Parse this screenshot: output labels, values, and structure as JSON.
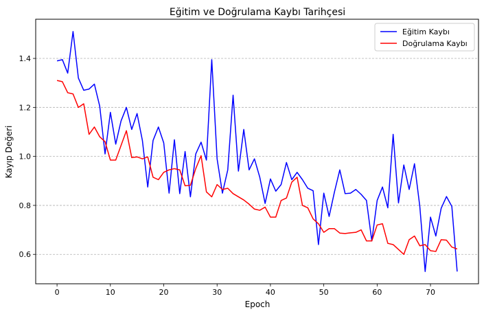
{
  "chart_data": {
    "type": "line",
    "title": "Eğitim ve Doğrulama Kaybı Tarihçesi",
    "xlabel": "Epoch",
    "ylabel": "Kayıp Değeri",
    "xlim": [
      -4,
      79
    ],
    "ylim": [
      0.48,
      1.56
    ],
    "xticks": [
      0,
      10,
      20,
      30,
      40,
      50,
      60,
      70
    ],
    "yticks": [
      0.6,
      0.8,
      1.0,
      1.2,
      1.4
    ],
    "ytick_labels": [
      "0.6",
      "0.8",
      "1.0",
      "1.2",
      "1.4"
    ],
    "grid": "horizontal",
    "legend_position": "top-right",
    "x": [
      0,
      1,
      2,
      3,
      4,
      5,
      6,
      7,
      8,
      9,
      10,
      11,
      12,
      13,
      14,
      15,
      16,
      17,
      18,
      19,
      20,
      21,
      22,
      23,
      24,
      25,
      26,
      27,
      28,
      29,
      30,
      31,
      32,
      33,
      34,
      35,
      36,
      37,
      38,
      39,
      40,
      41,
      42,
      43,
      44,
      45,
      46,
      47,
      48,
      49,
      50,
      51,
      52,
      53,
      54,
      55,
      56,
      57,
      58,
      59,
      60,
      61,
      62,
      63,
      64,
      65,
      66,
      67,
      68,
      69,
      70,
      71,
      72,
      73,
      74,
      75
    ],
    "series": [
      {
        "name": "Eğitim Kaybı",
        "color": "#0000ff",
        "values": [
          1.39,
          1.395,
          1.34,
          1.51,
          1.32,
          1.27,
          1.275,
          1.295,
          1.205,
          1.01,
          1.18,
          1.05,
          1.145,
          1.2,
          1.11,
          1.175,
          1.065,
          0.875,
          1.065,
          1.12,
          1.055,
          0.85,
          1.068,
          0.848,
          1.02,
          0.835,
          1.01,
          1.058,
          0.985,
          1.395,
          0.99,
          0.85,
          0.945,
          1.25,
          0.94,
          1.11,
          0.945,
          0.99,
          0.915,
          0.808,
          0.908,
          0.858,
          0.885,
          0.975,
          0.905,
          0.935,
          0.905,
          0.87,
          0.86,
          0.64,
          0.85,
          0.755,
          0.855,
          0.945,
          0.848,
          0.85,
          0.865,
          0.845,
          0.82,
          0.655,
          0.82,
          0.875,
          0.79,
          1.09,
          0.81,
          0.965,
          0.865,
          0.97,
          0.795,
          0.53,
          0.752,
          0.675,
          0.788,
          0.836,
          0.796,
          0.53
        ]
      },
      {
        "name": "Doğrulama Kaybı",
        "color": "#ff0000",
        "values": [
          1.31,
          1.305,
          1.26,
          1.255,
          1.2,
          1.215,
          1.09,
          1.12,
          1.08,
          1.06,
          0.985,
          0.985,
          1.045,
          1.105,
          0.995,
          0.998,
          0.99,
          0.998,
          0.915,
          0.905,
          0.935,
          0.945,
          0.95,
          0.945,
          0.88,
          0.882,
          0.95,
          1.003,
          0.855,
          0.835,
          0.885,
          0.865,
          0.87,
          0.848,
          0.835,
          0.822,
          0.805,
          0.785,
          0.78,
          0.793,
          0.752,
          0.752,
          0.82,
          0.83,
          0.895,
          0.915,
          0.8,
          0.79,
          0.745,
          0.725,
          0.69,
          0.705,
          0.705,
          0.687,
          0.685,
          0.688,
          0.69,
          0.7,
          0.655,
          0.655,
          0.72,
          0.725,
          0.645,
          0.64,
          0.62,
          0.6,
          0.66,
          0.675,
          0.635,
          0.64,
          0.615,
          0.612,
          0.66,
          0.658,
          0.63,
          0.622
        ]
      }
    ]
  }
}
